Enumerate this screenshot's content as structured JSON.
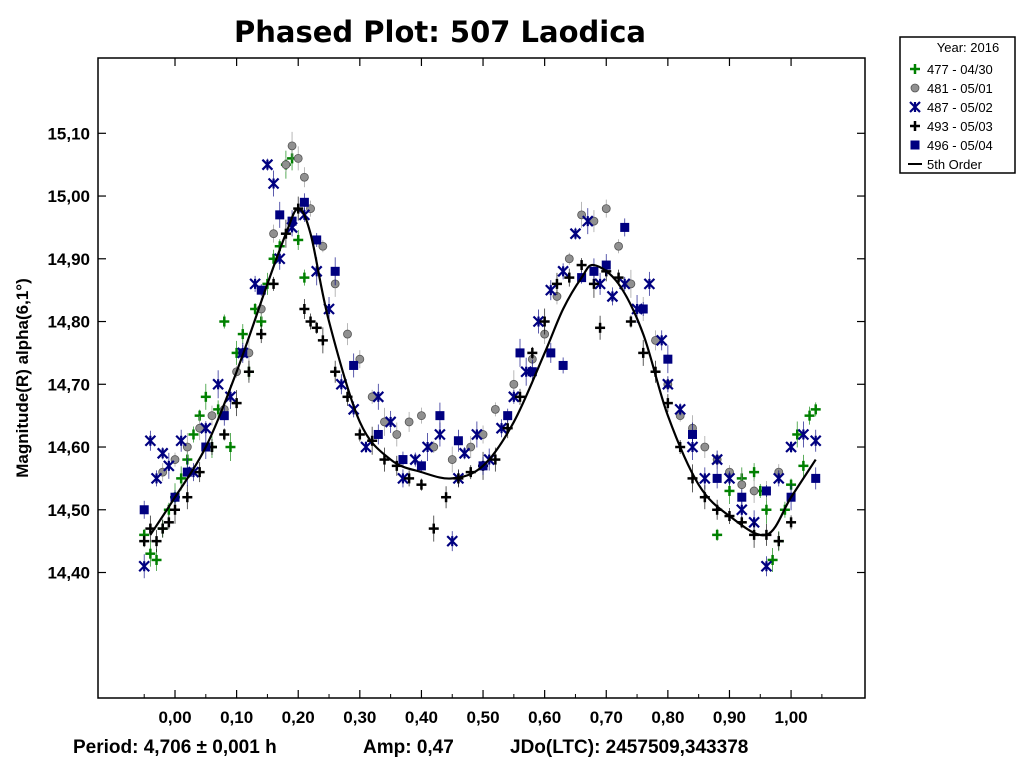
{
  "chart_data": {
    "type": "scatter",
    "title": "Phased Plot: 507 Laodica",
    "xlabel": "",
    "ylabel": "Magnitude(R) alpha(6,1°)",
    "xlim": [
      -0.125,
      1.12
    ],
    "ylim": [
      15.22,
      14.2
    ],
    "y_inverted": true,
    "x_ticks": [
      0.0,
      0.1,
      0.2,
      0.3,
      0.4,
      0.5,
      0.6,
      0.7,
      0.8,
      0.9,
      1.0
    ],
    "x_tick_labels": [
      "0,00",
      "0,10",
      "0,20",
      "0,30",
      "0,40",
      "0,50",
      "0,60",
      "0,70",
      "0,80",
      "0,90",
      "1,00"
    ],
    "y_ticks": [
      14.4,
      14.5,
      14.6,
      14.7,
      14.8,
      14.9,
      15.0,
      15.1
    ],
    "y_tick_labels": [
      "14,40",
      "14,50",
      "14,60",
      "14,70",
      "14,80",
      "14,90",
      "15,00",
      "15,10"
    ],
    "grid": false,
    "legend": {
      "placement": "outside-top-right",
      "title": "Year: 2016",
      "entries": [
        {
          "label": "477 - 04/30",
          "marker": "plus",
          "color": "#008000"
        },
        {
          "label": "481 - 05/01",
          "marker": "circle",
          "color": "#909090"
        },
        {
          "label": "487 - 05/02",
          "marker": "asterisk",
          "color": "#000080"
        },
        {
          "label": "493 - 05/03",
          "marker": "plus",
          "color": "#000000"
        },
        {
          "label": "496 - 05/04",
          "marker": "square",
          "color": "#000080"
        },
        {
          "label": "5th Order",
          "marker": "line",
          "color": "#000000"
        }
      ]
    },
    "fit_curve": {
      "name": "5th Order",
      "x": [
        -0.04,
        0.0,
        0.05,
        0.1,
        0.15,
        0.18,
        0.2,
        0.22,
        0.25,
        0.3,
        0.35,
        0.4,
        0.45,
        0.5,
        0.55,
        0.6,
        0.63,
        0.66,
        0.68,
        0.72,
        0.76,
        0.8,
        0.85,
        0.9,
        0.96,
        1.0,
        1.04
      ],
      "y": [
        14.46,
        14.52,
        14.6,
        14.72,
        14.86,
        14.94,
        14.98,
        14.94,
        14.8,
        14.64,
        14.58,
        14.56,
        14.55,
        14.57,
        14.64,
        14.75,
        14.82,
        14.87,
        14.89,
        14.86,
        14.78,
        14.65,
        14.54,
        14.49,
        14.46,
        14.52,
        14.58
      ]
    },
    "series": [
      {
        "name": "477 - 04/30",
        "marker": "plus",
        "color": "#008000",
        "x": [
          -0.05,
          -0.04,
          -0.03,
          -0.02,
          -0.01,
          0.0,
          0.01,
          0.02,
          0.03,
          0.04,
          0.05,
          0.06,
          0.07,
          0.08,
          0.09,
          0.1,
          0.11,
          0.12,
          0.13,
          0.14,
          0.15,
          0.16,
          0.17,
          0.18,
          0.19,
          0.2,
          0.21,
          0.88,
          0.9,
          0.92,
          0.94,
          0.95,
          0.96,
          0.97,
          0.98,
          0.99,
          1.0,
          1.01,
          1.02,
          1.03,
          1.04
        ],
        "y": [
          14.46,
          14.43,
          14.42,
          14.47,
          14.5,
          14.52,
          14.55,
          14.58,
          14.62,
          14.65,
          14.68,
          14.6,
          14.66,
          14.8,
          14.6,
          14.75,
          14.78,
          14.72,
          14.82,
          14.8,
          14.86,
          14.9,
          14.92,
          15.05,
          15.06,
          14.93,
          14.87,
          14.46,
          14.53,
          14.55,
          14.56,
          14.53,
          14.5,
          14.42,
          14.45,
          14.5,
          14.54,
          14.62,
          14.57,
          14.65,
          14.66
        ]
      },
      {
        "name": "481 - 05/01",
        "marker": "circle",
        "color": "#909090",
        "x": [
          -0.02,
          0.0,
          0.02,
          0.04,
          0.06,
          0.08,
          0.1,
          0.12,
          0.14,
          0.16,
          0.18,
          0.19,
          0.2,
          0.21,
          0.22,
          0.24,
          0.26,
          0.28,
          0.3,
          0.32,
          0.34,
          0.36,
          0.38,
          0.4,
          0.42,
          0.45,
          0.48,
          0.5,
          0.52,
          0.55,
          0.58,
          0.6,
          0.62,
          0.64,
          0.66,
          0.68,
          0.7,
          0.72,
          0.74,
          0.76,
          0.78,
          0.8,
          0.82,
          0.84,
          0.86,
          0.88,
          0.9,
          0.92,
          0.94,
          0.96,
          0.98
        ],
        "y": [
          14.56,
          14.58,
          14.6,
          14.63,
          14.65,
          14.66,
          14.72,
          14.75,
          14.82,
          14.94,
          15.05,
          15.08,
          15.06,
          15.03,
          14.98,
          14.92,
          14.86,
          14.78,
          14.74,
          14.68,
          14.64,
          14.62,
          14.64,
          14.65,
          14.6,
          14.58,
          14.6,
          14.62,
          14.66,
          14.7,
          14.74,
          14.78,
          14.84,
          14.9,
          14.97,
          14.96,
          14.98,
          14.92,
          14.86,
          14.82,
          14.77,
          14.7,
          14.65,
          14.63,
          14.6,
          14.58,
          14.56,
          14.54,
          14.53,
          14.53,
          14.56
        ]
      },
      {
        "name": "487 - 05/02",
        "marker": "asterisk",
        "color": "#000080",
        "x": [
          -0.05,
          -0.04,
          -0.03,
          -0.02,
          -0.01,
          0.01,
          0.03,
          0.05,
          0.07,
          0.09,
          0.11,
          0.13,
          0.15,
          0.16,
          0.17,
          0.19,
          0.21,
          0.23,
          0.25,
          0.27,
          0.29,
          0.31,
          0.33,
          0.35,
          0.37,
          0.39,
          0.41,
          0.43,
          0.45,
          0.46,
          0.47,
          0.49,
          0.51,
          0.53,
          0.55,
          0.57,
          0.59,
          0.61,
          0.63,
          0.65,
          0.67,
          0.69,
          0.71,
          0.73,
          0.75,
          0.77,
          0.79,
          0.8,
          0.82,
          0.84,
          0.86,
          0.88,
          0.9,
          0.92,
          0.94,
          0.96,
          0.98,
          1.0,
          1.02,
          1.04
        ],
        "y": [
          14.41,
          14.61,
          14.55,
          14.59,
          14.57,
          14.61,
          14.56,
          14.63,
          14.7,
          14.68,
          14.75,
          14.86,
          15.05,
          15.02,
          14.9,
          14.95,
          14.97,
          14.88,
          14.82,
          14.7,
          14.66,
          14.6,
          14.68,
          14.64,
          14.55,
          14.58,
          14.6,
          14.62,
          14.45,
          14.55,
          14.59,
          14.62,
          14.58,
          14.63,
          14.68,
          14.72,
          14.8,
          14.85,
          14.88,
          14.94,
          14.96,
          14.86,
          14.84,
          14.86,
          14.82,
          14.86,
          14.77,
          14.7,
          14.66,
          14.6,
          14.55,
          14.58,
          14.55,
          14.5,
          14.48,
          14.41,
          14.55,
          14.6,
          14.62,
          14.61
        ]
      },
      {
        "name": "493 - 05/03",
        "marker": "plus",
        "color": "#000000",
        "x": [
          -0.05,
          -0.04,
          -0.03,
          -0.02,
          -0.01,
          0.0,
          0.02,
          0.04,
          0.06,
          0.08,
          0.1,
          0.12,
          0.14,
          0.16,
          0.18,
          0.2,
          0.21,
          0.22,
          0.23,
          0.24,
          0.26,
          0.28,
          0.3,
          0.32,
          0.34,
          0.36,
          0.38,
          0.4,
          0.42,
          0.44,
          0.46,
          0.48,
          0.5,
          0.52,
          0.54,
          0.56,
          0.58,
          0.6,
          0.62,
          0.64,
          0.66,
          0.68,
          0.69,
          0.7,
          0.72,
          0.74,
          0.76,
          0.78,
          0.8,
          0.82,
          0.84,
          0.86,
          0.88,
          0.9,
          0.92,
          0.94,
          0.96,
          0.98,
          1.0
        ],
        "y": [
          14.45,
          14.47,
          14.45,
          14.47,
          14.48,
          14.5,
          14.52,
          14.56,
          14.6,
          14.62,
          14.67,
          14.72,
          14.78,
          14.86,
          14.94,
          14.98,
          14.82,
          14.8,
          14.79,
          14.77,
          14.72,
          14.68,
          14.62,
          14.61,
          14.58,
          14.57,
          14.55,
          14.54,
          14.47,
          14.52,
          14.55,
          14.56,
          14.57,
          14.58,
          14.63,
          14.68,
          14.75,
          14.8,
          14.86,
          14.87,
          14.89,
          14.86,
          14.79,
          14.88,
          14.87,
          14.8,
          14.75,
          14.72,
          14.67,
          14.6,
          14.55,
          14.52,
          14.5,
          14.49,
          14.48,
          14.46,
          14.46,
          14.45,
          14.48
        ]
      },
      {
        "name": "496 - 05/04",
        "marker": "square",
        "color": "#000080",
        "x": [
          -0.05,
          0.0,
          0.02,
          0.05,
          0.08,
          0.11,
          0.14,
          0.17,
          0.19,
          0.21,
          0.23,
          0.26,
          0.29,
          0.33,
          0.37,
          0.4,
          0.43,
          0.46,
          0.5,
          0.54,
          0.56,
          0.58,
          0.61,
          0.63,
          0.66,
          0.68,
          0.7,
          0.73,
          0.76,
          0.8,
          0.84,
          0.88,
          0.92,
          0.96,
          1.0,
          1.04
        ],
        "y": [
          14.5,
          14.52,
          14.56,
          14.6,
          14.65,
          14.75,
          14.85,
          14.97,
          14.96,
          14.99,
          14.93,
          14.88,
          14.73,
          14.62,
          14.58,
          14.57,
          14.65,
          14.61,
          14.57,
          14.65,
          14.75,
          14.72,
          14.75,
          14.73,
          14.87,
          14.88,
          14.89,
          14.95,
          14.82,
          14.74,
          14.62,
          14.55,
          14.52,
          14.53,
          14.52,
          14.55
        ]
      }
    ]
  },
  "footer": {
    "period": "Period: 4,706 ± 0,001 h",
    "amp": "Amp: 0,47",
    "jdo": "JDo(LTC): 2457509,343378"
  }
}
